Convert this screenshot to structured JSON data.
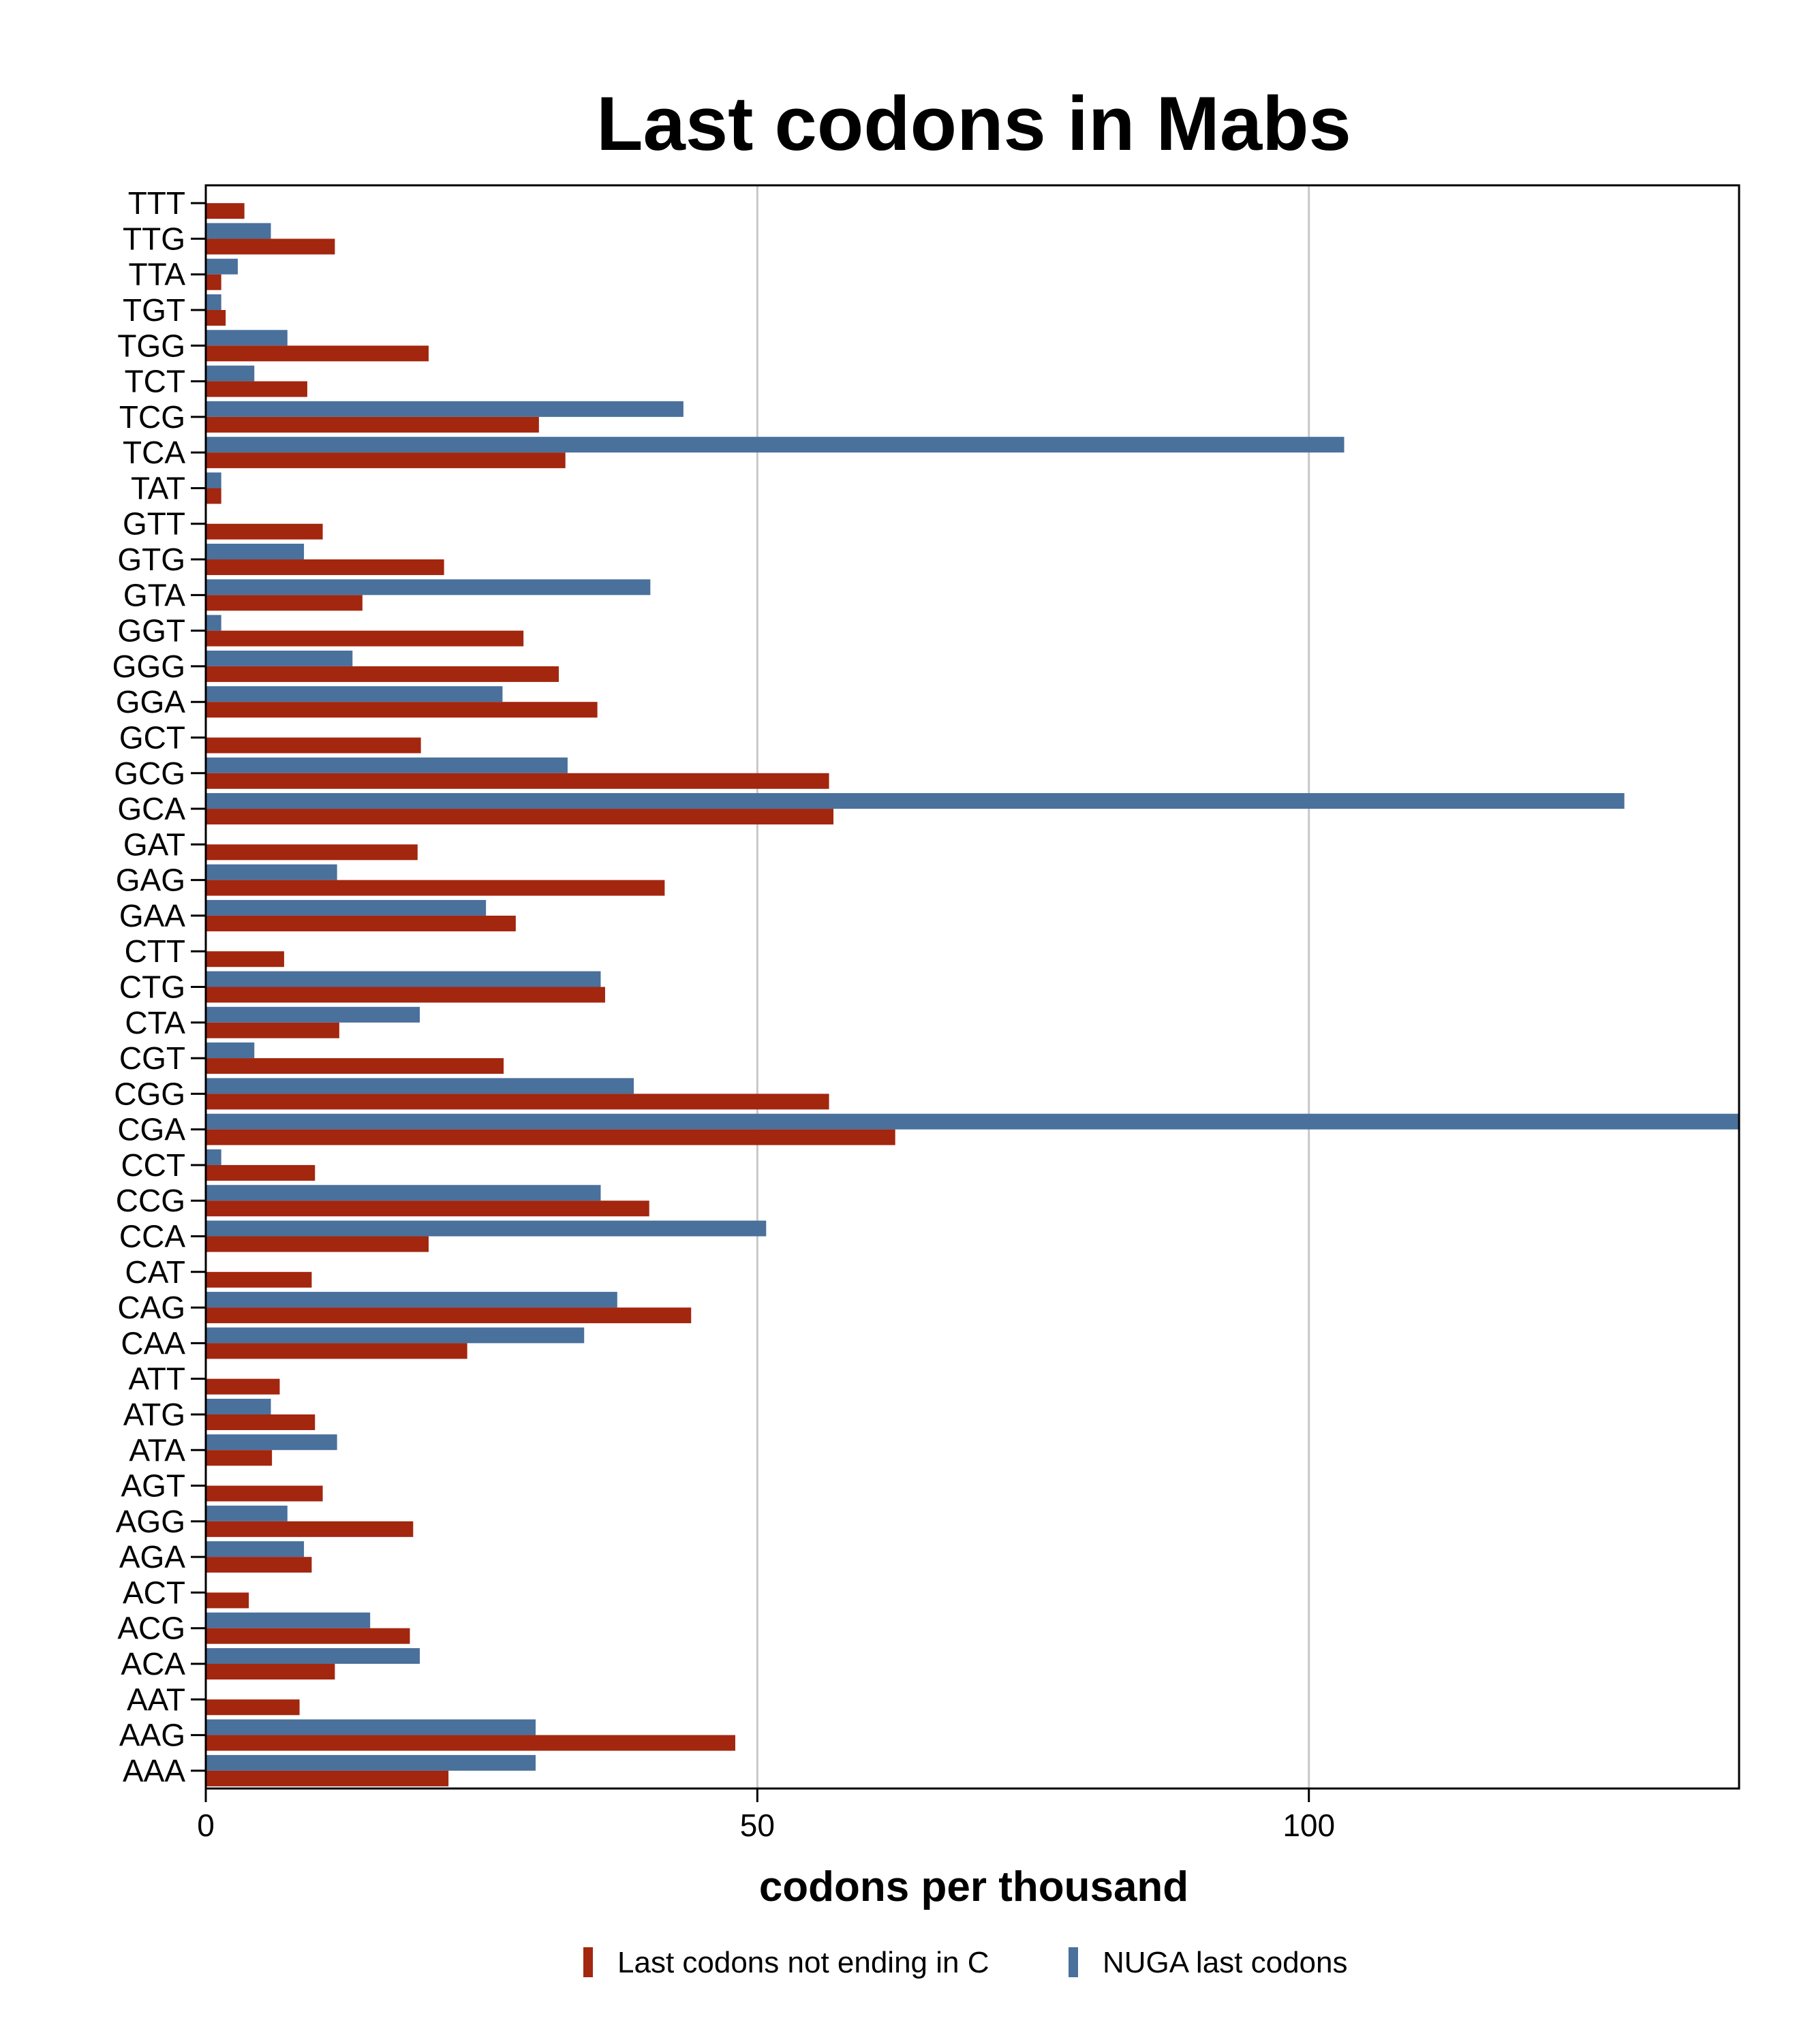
{
  "chart_data": {
    "type": "bar",
    "orientation": "horizontal",
    "title": "Last codons in Mabs",
    "xlabel": "codons per thousand",
    "ylabel": "",
    "xlim": [
      0,
      139
    ],
    "xticks": [
      0,
      50,
      100
    ],
    "grid": "vertical",
    "legend_position": "bottom",
    "categories": [
      "TTT",
      "TTG",
      "TTA",
      "TGT",
      "TGG",
      "TCT",
      "TCG",
      "TCA",
      "TAT",
      "GTT",
      "GTG",
      "GTA",
      "GGT",
      "GGG",
      "GGA",
      "GCT",
      "GCG",
      "GCA",
      "GAT",
      "GAG",
      "GAA",
      "CTT",
      "CTG",
      "CTA",
      "CGT",
      "CGG",
      "CGA",
      "CCT",
      "CCG",
      "CCA",
      "CAT",
      "CAG",
      "CAA",
      "ATT",
      "ATG",
      "ATA",
      "AGT",
      "AGG",
      "AGA",
      "ACT",
      "ACG",
      "ACA",
      "AAT",
      "AAG",
      "AAA"
    ],
    "series": [
      {
        "name": "Last codons not ending in C",
        "color": "#a3260f",
        "values": [
          3.5,
          11.7,
          1.4,
          1.8,
          20.2,
          9.2,
          30.2,
          32.6,
          1.4,
          10.6,
          21.6,
          14.2,
          28.8,
          32.0,
          35.5,
          19.5,
          56.5,
          56.9,
          19.2,
          41.6,
          28.1,
          7.1,
          36.2,
          12.1,
          27.0,
          56.5,
          62.5,
          9.9,
          40.2,
          20.2,
          9.6,
          44.0,
          23.7,
          6.7,
          9.9,
          6.0,
          10.6,
          18.8,
          9.6,
          3.9,
          18.5,
          11.7,
          8.5,
          48.0,
          22.0
        ]
      },
      {
        "name": "NUGA last codons",
        "color": "#4a709c",
        "values": [
          0,
          5.9,
          2.9,
          1.4,
          7.4,
          4.4,
          43.3,
          103.2,
          1.4,
          0,
          8.9,
          40.3,
          1.4,
          13.3,
          26.9,
          0,
          32.8,
          128.6,
          0,
          11.9,
          25.4,
          0,
          35.8,
          19.4,
          4.4,
          38.8,
          139.0,
          1.4,
          35.8,
          50.8,
          0,
          37.3,
          34.3,
          0,
          5.9,
          11.9,
          0,
          7.4,
          8.9,
          0,
          14.9,
          19.4,
          0,
          29.9,
          29.9
        ]
      }
    ]
  }
}
